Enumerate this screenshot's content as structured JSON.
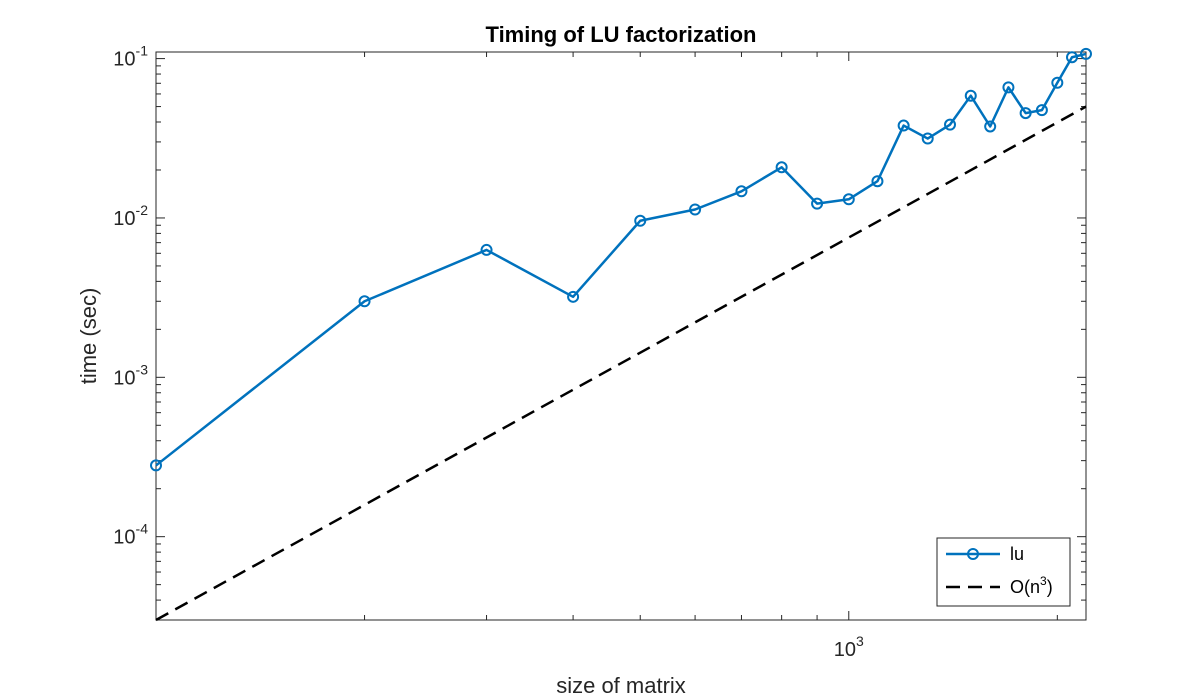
{
  "chart_data": {
    "type": "line",
    "title": "Timing of LU factorization",
    "xlabel": "size of matrix",
    "ylabel": "time (sec)",
    "xscale": "log",
    "yscale": "log",
    "xlim": [
      100,
      2200
    ],
    "ylim": [
      3e-05,
      0.11
    ],
    "grid": false,
    "legend_position": "bottom-right",
    "x_ticks": [
      {
        "value": 1000,
        "base": "10",
        "exp": "3"
      }
    ],
    "y_ticks": [
      {
        "value": 0.0001,
        "base": "10",
        "exp": "-4"
      },
      {
        "value": 0.001,
        "base": "10",
        "exp": "-3"
      },
      {
        "value": 0.01,
        "base": "10",
        "exp": "-2"
      },
      {
        "value": 0.1,
        "base": "10",
        "exp": "-1"
      }
    ],
    "series": [
      {
        "name": "lu",
        "color": "#0072BD",
        "style": "solid",
        "marker": "circle",
        "x": [
          100,
          200,
          300,
          400,
          500,
          600,
          700,
          800,
          900,
          1000,
          1100,
          1200,
          1300,
          1400,
          1500,
          1600,
          1700,
          1800,
          1900,
          2000,
          2100,
          2200
        ],
        "y": [
          0.00028,
          0.003,
          0.0063,
          0.0032,
          0.0096,
          0.0113,
          0.0147,
          0.0208,
          0.0123,
          0.0131,
          0.017,
          0.038,
          0.0315,
          0.0385,
          0.0585,
          0.0375,
          0.066,
          0.0455,
          0.0475,
          0.0705,
          0.102,
          0.107
        ]
      },
      {
        "name": "O(n",
        "name_sup": "3",
        "name_suffix": ")",
        "color": "#000000",
        "style": "dashed",
        "marker": "none",
        "x": [
          100,
          2200
        ],
        "y": [
          3e-05,
          0.05
        ]
      }
    ]
  }
}
